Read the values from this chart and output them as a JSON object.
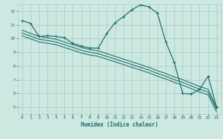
{
  "xlabel": "Humidex (Indice chaleur)",
  "bg_color": "#cce8e0",
  "grid_color": "#aacfc8",
  "line_color": "#1a6b6b",
  "xlim": [
    -0.5,
    23.5
  ],
  "ylim": [
    4.5,
    12.5
  ],
  "xticks": [
    0,
    1,
    2,
    3,
    4,
    5,
    6,
    7,
    8,
    9,
    10,
    11,
    12,
    13,
    14,
    15,
    16,
    17,
    18,
    19,
    20,
    21,
    22,
    23
  ],
  "yticks": [
    5,
    6,
    7,
    8,
    9,
    10,
    11,
    12
  ],
  "line1_x": [
    0,
    1,
    2,
    3,
    4,
    5,
    6,
    7,
    8,
    9,
    10,
    11,
    12,
    13,
    14,
    15,
    16,
    17,
    18,
    19,
    20,
    21,
    22,
    23
  ],
  "line1_y": [
    11.3,
    11.1,
    10.15,
    10.2,
    10.15,
    10.05,
    9.65,
    9.45,
    9.3,
    9.3,
    10.35,
    11.15,
    11.6,
    12.1,
    12.45,
    12.3,
    11.85,
    9.75,
    8.25,
    6.0,
    5.95,
    6.3,
    7.25,
    5.0
  ],
  "line2_x": [
    0,
    2,
    3,
    4,
    5,
    6,
    7,
    8,
    9,
    10,
    11,
    12,
    13,
    14,
    15,
    16,
    17,
    18,
    19,
    20,
    21,
    22,
    23
  ],
  "line2_y": [
    10.6,
    10.15,
    10.05,
    9.95,
    9.75,
    9.55,
    9.35,
    9.2,
    9.1,
    8.9,
    8.7,
    8.5,
    8.3,
    8.1,
    7.9,
    7.65,
    7.45,
    7.2,
    7.0,
    6.75,
    6.5,
    6.3,
    5.0
  ],
  "line3_x": [
    0,
    2,
    3,
    4,
    5,
    6,
    7,
    8,
    9,
    10,
    11,
    12,
    13,
    14,
    15,
    16,
    17,
    18,
    19,
    20,
    21,
    22,
    23
  ],
  "line3_y": [
    10.4,
    9.95,
    9.85,
    9.75,
    9.55,
    9.35,
    9.15,
    9.0,
    8.9,
    8.7,
    8.5,
    8.3,
    8.1,
    7.9,
    7.7,
    7.45,
    7.25,
    7.0,
    6.8,
    6.55,
    6.3,
    6.1,
    4.85
  ],
  "line4_x": [
    0,
    2,
    3,
    4,
    5,
    6,
    7,
    8,
    9,
    10,
    11,
    12,
    13,
    14,
    15,
    16,
    17,
    18,
    19,
    20,
    21,
    22,
    23
  ],
  "line4_y": [
    10.2,
    9.75,
    9.65,
    9.55,
    9.35,
    9.15,
    8.95,
    8.8,
    8.7,
    8.5,
    8.3,
    8.1,
    7.9,
    7.7,
    7.5,
    7.25,
    7.05,
    6.8,
    6.6,
    6.35,
    6.1,
    5.9,
    4.65
  ]
}
